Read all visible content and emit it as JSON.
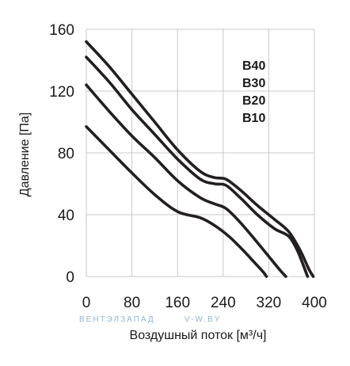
{
  "chart_data": {
    "type": "line",
    "xlabel": "Воздушный поток [м³/ч]",
    "ylabel": "Давление [Па]",
    "xlim": [
      0,
      400
    ],
    "ylim": [
      0,
      160
    ],
    "x_ticks": [
      "0",
      "80",
      "160",
      "240",
      "320",
      "400"
    ],
    "y_ticks": [
      "0",
      "40",
      "80",
      "120",
      "160"
    ],
    "grid": true,
    "legend_position": "top-right",
    "legend": [
      "B40",
      "B30",
      "B20",
      "B10"
    ],
    "series": [
      {
        "name": "B40",
        "points": [
          [
            0,
            152
          ],
          [
            40,
            136
          ],
          [
            80,
            118
          ],
          [
            120,
            100
          ],
          [
            160,
            82
          ],
          [
            200,
            68
          ],
          [
            225,
            64
          ],
          [
            245,
            63
          ],
          [
            270,
            56
          ],
          [
            300,
            46
          ],
          [
            330,
            37
          ],
          [
            355,
            29
          ],
          [
            375,
            17
          ],
          [
            390,
            5
          ],
          [
            398,
            0
          ]
        ]
      },
      {
        "name": "B30",
        "points": [
          [
            0,
            142
          ],
          [
            40,
            126
          ],
          [
            80,
            108
          ],
          [
            120,
            92
          ],
          [
            160,
            76
          ],
          [
            200,
            63
          ],
          [
            225,
            60
          ],
          [
            245,
            59
          ],
          [
            270,
            51
          ],
          [
            300,
            40
          ],
          [
            330,
            31
          ],
          [
            355,
            26
          ],
          [
            370,
            17
          ],
          [
            382,
            6
          ],
          [
            388,
            0
          ]
        ]
      },
      {
        "name": "B20",
        "points": [
          [
            0,
            124
          ],
          [
            40,
            107
          ],
          [
            80,
            91
          ],
          [
            120,
            77
          ],
          [
            160,
            62
          ],
          [
            200,
            51
          ],
          [
            225,
            47
          ],
          [
            245,
            44
          ],
          [
            270,
            35
          ],
          [
            300,
            22
          ],
          [
            320,
            13
          ],
          [
            340,
            4
          ],
          [
            350,
            0
          ]
        ]
      },
      {
        "name": "B10",
        "points": [
          [
            0,
            97
          ],
          [
            40,
            82
          ],
          [
            80,
            67
          ],
          [
            120,
            53
          ],
          [
            160,
            42
          ],
          [
            200,
            38
          ],
          [
            225,
            33
          ],
          [
            250,
            26
          ],
          [
            275,
            17
          ],
          [
            295,
            9
          ],
          [
            310,
            3
          ],
          [
            316,
            0
          ]
        ]
      }
    ]
  },
  "watermark": {
    "left": "ВЕНТЭЛЗАПАД",
    "right": "V-W.BY"
  }
}
